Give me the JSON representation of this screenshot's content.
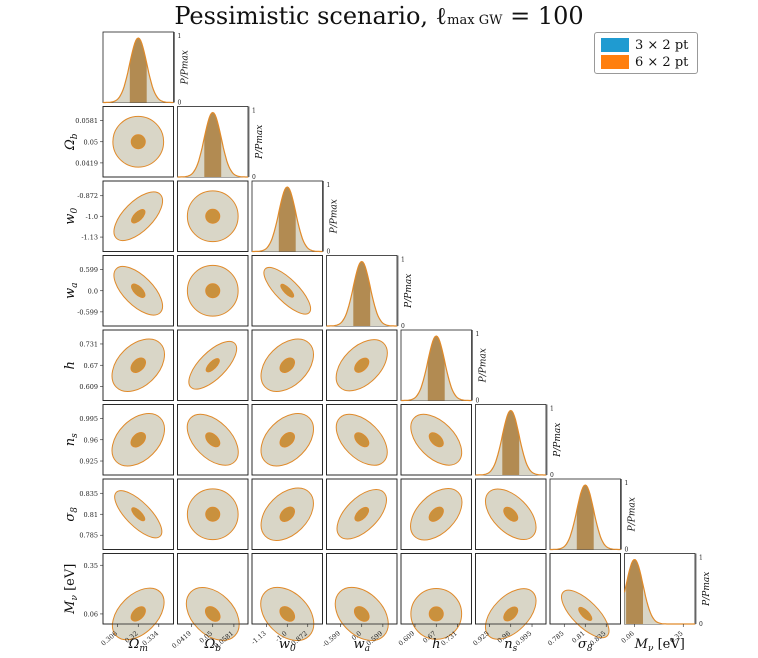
{
  "title": {
    "main": "Pessimistic scenario, ℓ",
    "sub": "max GW",
    "eq": " = 100"
  },
  "legend": [
    {
      "label": "3 × 2 pt",
      "color": "#1f9bd1"
    },
    {
      "label": "6 × 2 pt",
      "color": "#ff7f0e"
    }
  ],
  "colors": {
    "fill": "#d9d6c7",
    "edge": "#e08a2a",
    "inner": "#c9913e",
    "band": "#b28b52"
  },
  "diag_ylabel": "P/P_max",
  "diag_ticks": [
    "0",
    "1"
  ],
  "chart_data": {
    "type": "corner",
    "title": "Pessimistic scenario, ℓ max GW = 100",
    "params": [
      {
        "name": "Ωm",
        "label": "Ω_m",
        "fiducial": 0.32,
        "ticks": [
          "0.306",
          "0.32",
          "0.334"
        ],
        "range": [
          0.296,
          0.344
        ]
      },
      {
        "name": "Ωb",
        "label": "Ω_b",
        "fiducial": 0.05,
        "ticks": [
          "0.0419",
          "0.05",
          "0.0581"
        ],
        "range": [
          0.0365,
          0.0635
        ]
      },
      {
        "name": "w0",
        "label": "w_0",
        "fiducial": -1.0,
        "ticks": [
          "-1.13",
          "-1.0",
          "-0.872"
        ],
        "range": [
          -1.22,
          -0.78
        ]
      },
      {
        "name": "wa",
        "label": "w_a",
        "fiducial": 0.0,
        "ticks": [
          "-0.599",
          "0.0",
          "0.599"
        ],
        "range": [
          -1.0,
          1.0
        ]
      },
      {
        "name": "h",
        "label": "h",
        "fiducial": 0.67,
        "ticks": [
          "0.609",
          "0.67",
          "0.731"
        ],
        "range": [
          0.569,
          0.771
        ]
      },
      {
        "name": "ns",
        "label": "n_s",
        "fiducial": 0.96,
        "ticks": [
          "0.925",
          "0.96",
          "0.995"
        ],
        "range": [
          0.902,
          1.018
        ]
      },
      {
        "name": "sigma8",
        "label": "σ_8",
        "fiducial": 0.81,
        "ticks": [
          "0.785",
          "0.81",
          "0.835"
        ],
        "range": [
          0.768,
          0.852
        ]
      },
      {
        "name": "Mnu",
        "label": "M_ν [eV]",
        "fiducial": 0.06,
        "ticks": [
          "0.06",
          "0.35"
        ],
        "range": [
          0.0,
          0.42
        ]
      }
    ],
    "correlations": [
      [
        0,
        1,
        0.0
      ],
      [
        0,
        2,
        0.72
      ],
      [
        0,
        3,
        -0.72
      ],
      [
        0,
        4,
        0.28
      ],
      [
        0,
        5,
        0.28
      ],
      [
        0,
        6,
        -0.82
      ],
      [
        0,
        7,
        0.42
      ],
      [
        1,
        2,
        0.0
      ],
      [
        1,
        3,
        0.0
      ],
      [
        1,
        4,
        0.78
      ],
      [
        1,
        5,
        -0.5
      ],
      [
        1,
        6,
        0.0
      ],
      [
        1,
        7,
        -0.2
      ],
      [
        2,
        3,
        -0.85
      ],
      [
        2,
        4,
        0.28
      ],
      [
        2,
        5,
        0.28
      ],
      [
        2,
        6,
        0.3
      ],
      [
        2,
        7,
        -0.1
      ],
      [
        3,
        4,
        0.48
      ],
      [
        3,
        5,
        -0.5
      ],
      [
        3,
        6,
        0.65
      ],
      [
        3,
        7,
        -0.12
      ],
      [
        4,
        5,
        -0.52
      ],
      [
        4,
        6,
        0.45
      ],
      [
        4,
        7,
        0.0
      ],
      [
        5,
        6,
        -0.55
      ],
      [
        5,
        7,
        0.55
      ],
      [
        6,
        7,
        -0.8
      ]
    ],
    "series": [
      {
        "name": "3 × 2 pt",
        "contour": "outer"
      },
      {
        "name": "6 × 2 pt",
        "contour": "inner"
      }
    ]
  }
}
